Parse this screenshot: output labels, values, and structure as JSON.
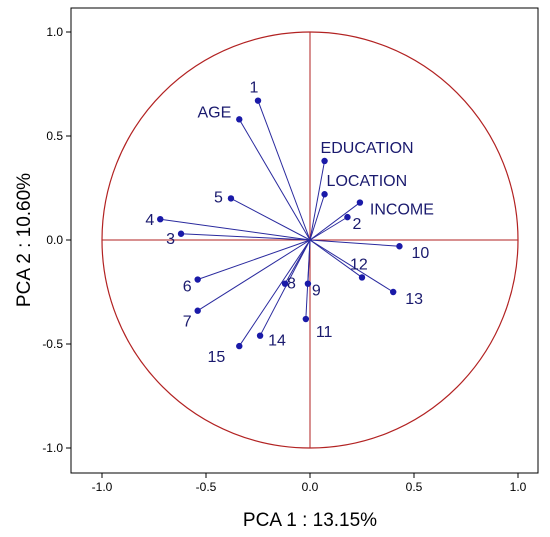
{
  "chart_data": {
    "type": "scatter",
    "subtype": "pca-correlation-circle",
    "title": "",
    "xlabel": "PCA 1 : 13.15%",
    "ylabel": "PCA 2 : 10.60%",
    "xlim": [
      -1.1,
      1.0
    ],
    "ylim": [
      -1.1,
      1.05
    ],
    "xticks": [
      "-1.0",
      "-0.5",
      "0.0",
      "0.5",
      "1.0"
    ],
    "yticks": [
      "1.0",
      "0.5",
      "0.0",
      "-0.5",
      "-1.0"
    ],
    "grid": false,
    "circle_radius": 1.0,
    "colors": {
      "circle": "#b22222",
      "vectors": "#2a2a9e",
      "points": "#1a1aa8",
      "labels": "#1a1a6e"
    },
    "points": [
      {
        "label": "1",
        "x": -0.25,
        "y": 0.67
      },
      {
        "label": "AGE",
        "x": -0.34,
        "y": 0.58
      },
      {
        "label": "EDUCATION",
        "x": 0.07,
        "y": 0.38
      },
      {
        "label": "LOCATION",
        "x": 0.07,
        "y": 0.22
      },
      {
        "label": "INCOME",
        "x": 0.24,
        "y": 0.18
      },
      {
        "label": "2",
        "x": 0.18,
        "y": 0.11
      },
      {
        "label": "5",
        "x": -0.38,
        "y": 0.2
      },
      {
        "label": "4",
        "x": -0.72,
        "y": 0.1
      },
      {
        "label": "3",
        "x": -0.62,
        "y": 0.03
      },
      {
        "label": "10",
        "x": 0.43,
        "y": -0.03
      },
      {
        "label": "12",
        "x": 0.25,
        "y": -0.18
      },
      {
        "label": "13",
        "x": 0.4,
        "y": -0.25
      },
      {
        "label": "6",
        "x": -0.54,
        "y": -0.19
      },
      {
        "label": "8",
        "x": -0.12,
        "y": -0.21
      },
      {
        "label": "9",
        "x": -0.01,
        "y": -0.21
      },
      {
        "label": "7",
        "x": -0.54,
        "y": -0.34
      },
      {
        "label": "11",
        "x": -0.02,
        "y": -0.38
      },
      {
        "label": "14",
        "x": -0.24,
        "y": -0.46
      },
      {
        "label": "15",
        "x": -0.34,
        "y": -0.51
      }
    ]
  }
}
